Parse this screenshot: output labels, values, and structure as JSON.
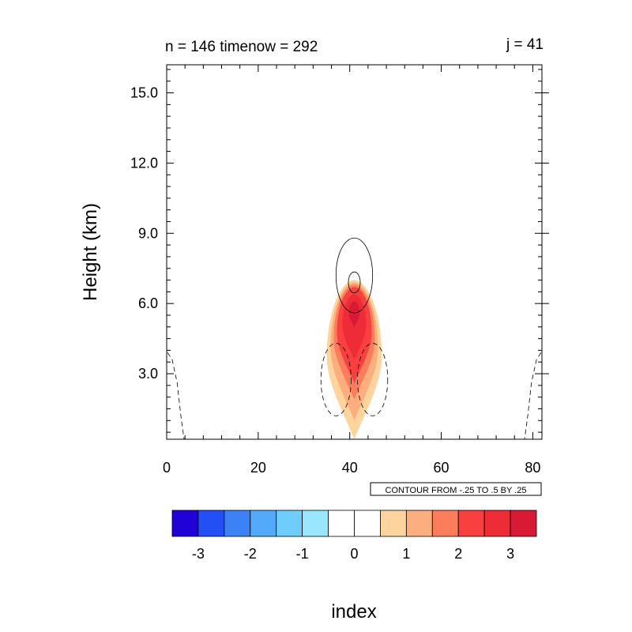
{
  "chart_data": {
    "type": "contour",
    "title_left": "n = 146 timenow = 292",
    "title_right": "j = 41",
    "xlabel": "index",
    "ylabel": "Height (km)",
    "xlim": [
      0,
      82
    ],
    "ylim": [
      0.2,
      16.2
    ],
    "x_ticks": [
      {
        "value": 0,
        "label": "0"
      },
      {
        "value": 20,
        "label": "20"
      },
      {
        "value": 40,
        "label": "40"
      },
      {
        "value": 60,
        "label": "60"
      },
      {
        "value": 80,
        "label": "80"
      }
    ],
    "y_ticks": [
      {
        "value": 3,
        "label": "3.0"
      },
      {
        "value": 6,
        "label": "6.0"
      },
      {
        "value": 9,
        "label": "9.0"
      },
      {
        "value": 12,
        "label": "12.0"
      },
      {
        "value": 15,
        "label": "15.0"
      }
    ],
    "contour_info": "CONTOUR FROM -.25 TO .5 BY .25",
    "filled_field": [
      {
        "level": 0.5,
        "x_center": 41,
        "x_halfwidth": 6,
        "y_bottom": 0.2,
        "y_top": 7.0,
        "color": "#fdd49e"
      },
      {
        "level": 1.0,
        "x_center": 41,
        "x_halfwidth": 5.2,
        "y_bottom": 1.0,
        "y_top": 6.9,
        "color": "#fdae7f"
      },
      {
        "level": 1.5,
        "x_center": 41,
        "x_halfwidth": 4.5,
        "y_bottom": 1.9,
        "y_top": 6.8,
        "color": "#fc7d5c"
      },
      {
        "level": 2.0,
        "x_center": 41,
        "x_halfwidth": 3.8,
        "y_bottom": 2.6,
        "y_top": 6.7,
        "color": "#f9403f"
      },
      {
        "level": 2.5,
        "x_center": 41,
        "x_halfwidth": 2.6,
        "y_bottom": 3.6,
        "y_top": 6.4,
        "color": "#ee2c38"
      },
      {
        "level": 3.0,
        "x_center": 41,
        "x_halfwidth": 1.2,
        "y_bottom": 5.0,
        "y_top": 6.1,
        "color": "#d91a35"
      }
    ],
    "line_contours": [
      {
        "level": 0.25,
        "style": "solid",
        "x_center": 41,
        "x_halfwidth": 4.0,
        "y_center": 7.2,
        "y_halfheight": 1.6
      },
      {
        "level": 0.5,
        "style": "solid",
        "x_center": 41,
        "x_halfwidth": 1.3,
        "y_center": 6.9,
        "y_halfheight": 0.45
      },
      {
        "level": -0.25,
        "style": "dashed",
        "x_center": 37,
        "x_halfwidth": 3.3,
        "y_center": 2.75,
        "y_halfheight": 1.55
      },
      {
        "level": -0.25,
        "style": "dashed",
        "x_center": 45,
        "x_halfwidth": 3.3,
        "y_center": 2.75,
        "y_halfheight": 1.55
      },
      {
        "level": -0.25,
        "style": "dashed",
        "edge": "left",
        "points": [
          [
            0.2,
            3.9
          ],
          [
            1.2,
            3.6
          ],
          [
            2.3,
            2.6
          ],
          [
            3.1,
            1.2
          ],
          [
            3.8,
            0.2
          ]
        ]
      },
      {
        "level": -0.25,
        "style": "dashed",
        "edge": "right",
        "points": [
          [
            81.8,
            3.9
          ],
          [
            80.8,
            3.6
          ],
          [
            79.7,
            2.6
          ],
          [
            78.9,
            1.2
          ],
          [
            78.2,
            0.2
          ]
        ]
      }
    ],
    "colorbar": {
      "labels": [
        "-3",
        "-2",
        "-1",
        "0",
        "1",
        "2",
        "3"
      ],
      "colors": [
        "#2001d8",
        "#2350f5",
        "#3a82f6",
        "#53a9fa",
        "#6fcdfb",
        "#98e7fd",
        "#ffffff",
        "#ffffff",
        "#fdd49e",
        "#fdae7f",
        "#fc7d5c",
        "#f9403f",
        "#ee2c38",
        "#d91a35"
      ]
    }
  }
}
